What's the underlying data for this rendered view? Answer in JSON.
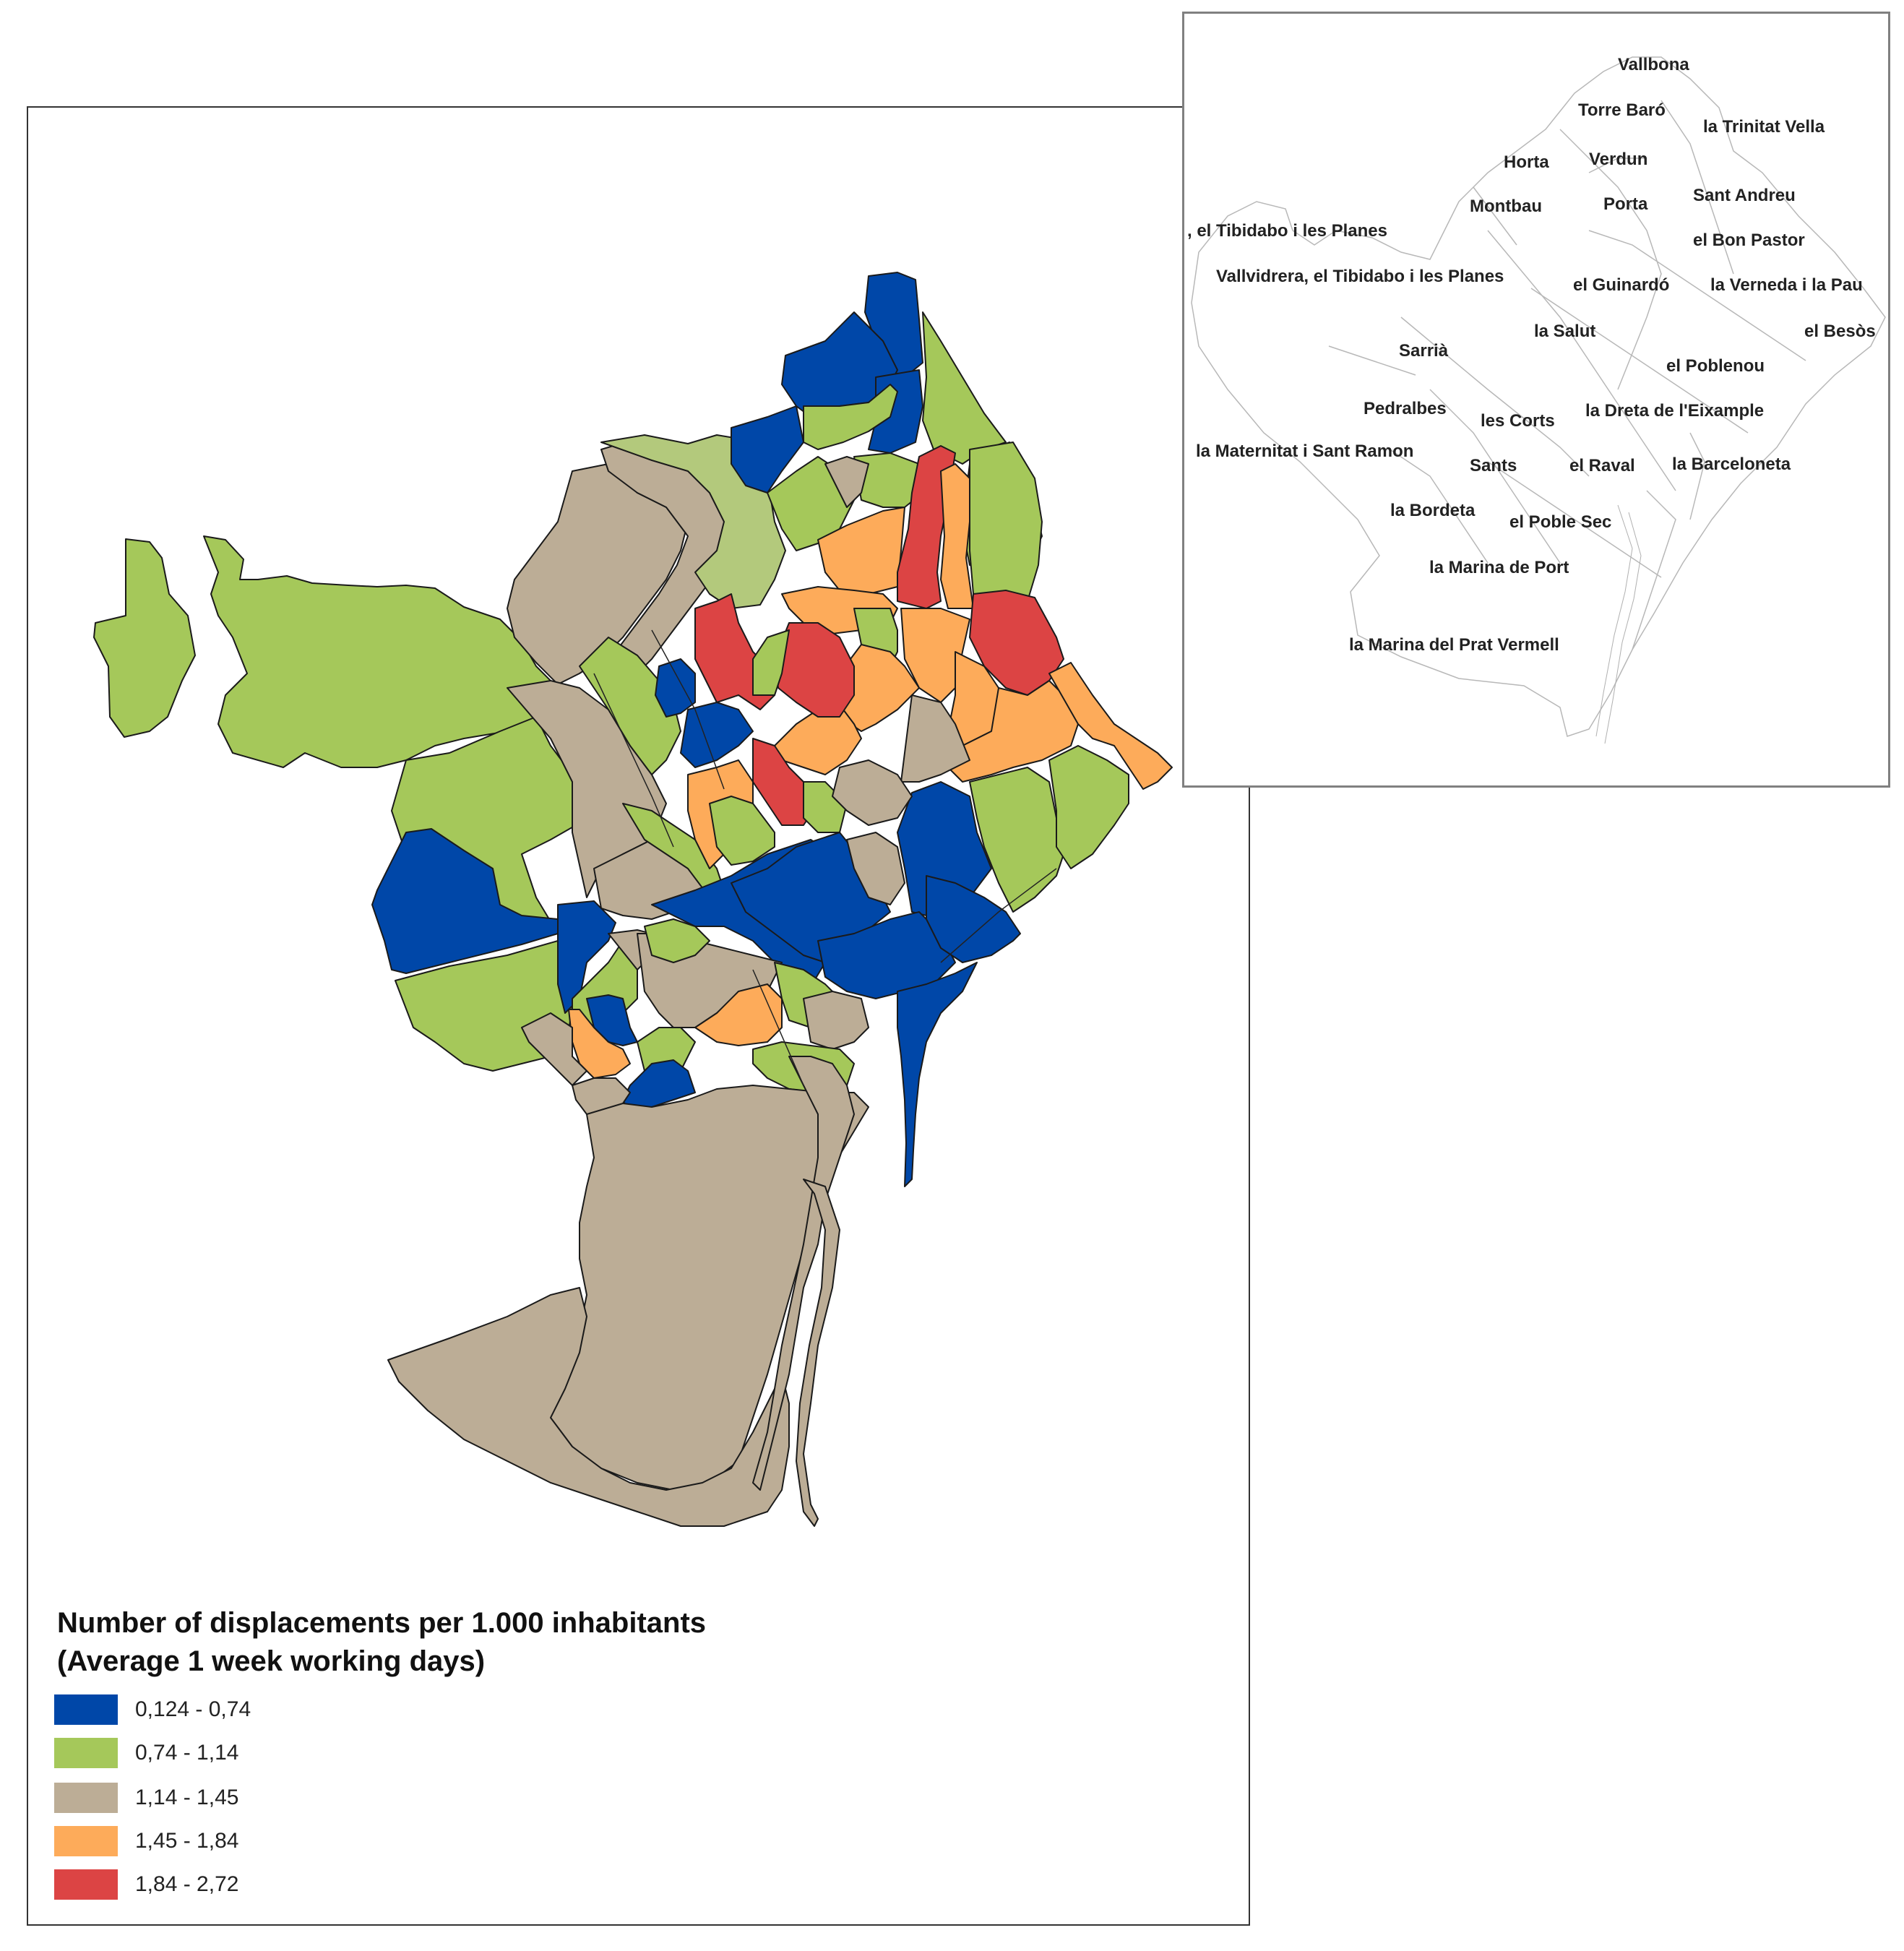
{
  "legend": {
    "title_line1": "Number of displacements  per 1.000 inhabitants",
    "title_line2": "(Average 1 week working days)",
    "classes": [
      {
        "label": "0,124 - 0,74",
        "color": "#0047a8",
        "min": 0.124,
        "max": 0.74
      },
      {
        "label": "0,74 - 1,14",
        "color": "#a5c85a",
        "min": 0.74,
        "max": 1.14
      },
      {
        "label": "1,14 - 1,45",
        "color": "#bcad96",
        "min": 1.14,
        "max": 1.45
      },
      {
        "label": "1,45 - 1,84",
        "color": "#fdab5a",
        "min": 1.45,
        "max": 1.84
      },
      {
        "label": "1,84 - 2,72",
        "color": "#dc4444",
        "min": 1.84,
        "max": 2.72
      }
    ]
  },
  "light_green_color": "#b3c97c",
  "inset_labels": [
    "Vallbona",
    "Torre Baró",
    "la Trinitat Vella",
    "Horta",
    "Verdun",
    "Montbau",
    "Porta",
    "Sant Andreu",
    ", el Tibidabo i les Planes",
    "el Bon Pastor",
    "Vallvidrera, el Tibidabo i les Planes",
    "el Guinardó",
    "la Verneda i la Pau",
    "la Salut",
    "el Besòs",
    "Sarrià",
    "el Poblenou",
    "Pedralbes",
    "les Corts",
    "la Dreta de l'Eixample",
    "la Maternitat i Sant Ramon",
    "Sants",
    "el Raval",
    "la Barceloneta",
    "la Bordeta",
    "el Poble Sec",
    "la Marina de Port",
    "la Marina del Prat Vermell"
  ]
}
